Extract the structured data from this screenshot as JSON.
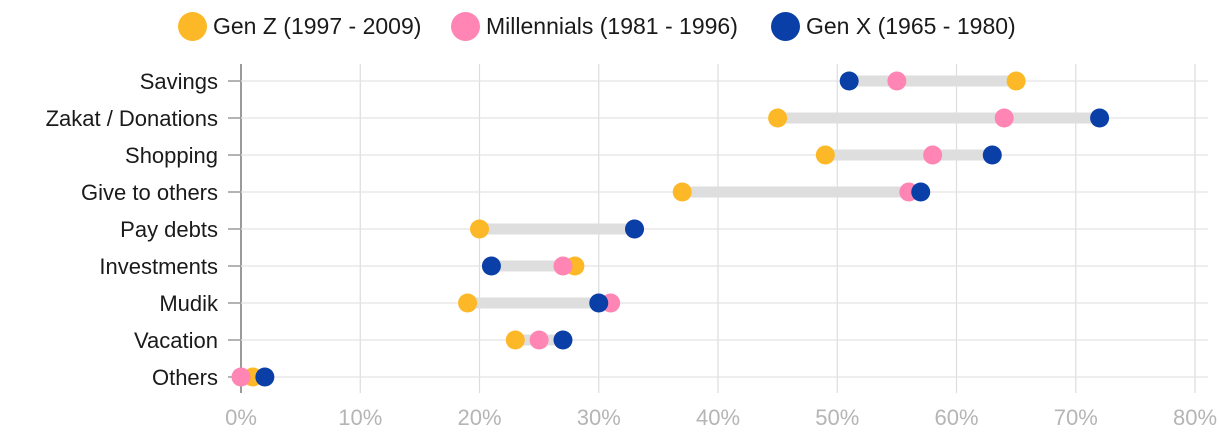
{
  "chart_data": {
    "type": "dumbbell",
    "title": "",
    "xlabel": "",
    "ylabel": "",
    "xlim": [
      0,
      80
    ],
    "x_ticks": [
      "0%",
      "10%",
      "20%",
      "30%",
      "40%",
      "50%",
      "60%",
      "70%",
      "80%"
    ],
    "grid": true,
    "legend_position": "top",
    "categories": [
      "Savings",
      "Zakat / Donations",
      "Shopping",
      "Give to others",
      "Pay debts",
      "Investments",
      "Mudik",
      "Vacation",
      "Others"
    ],
    "series": [
      {
        "name": "Gen Z (1997 - 2009)",
        "color": "#FDB827",
        "values": [
          65,
          45,
          49,
          37,
          20,
          28,
          19,
          23,
          1
        ]
      },
      {
        "name": "Millennials (1981 - 1996)",
        "color": "#FF85B4",
        "values": [
          55,
          64,
          58,
          56,
          33,
          27,
          31,
          25,
          0
        ]
      },
      {
        "name": "Gen X (1965 - 1980)",
        "color": "#0B3FA8",
        "values": [
          51,
          72,
          63,
          57,
          33,
          21,
          30,
          27,
          2
        ]
      }
    ]
  }
}
